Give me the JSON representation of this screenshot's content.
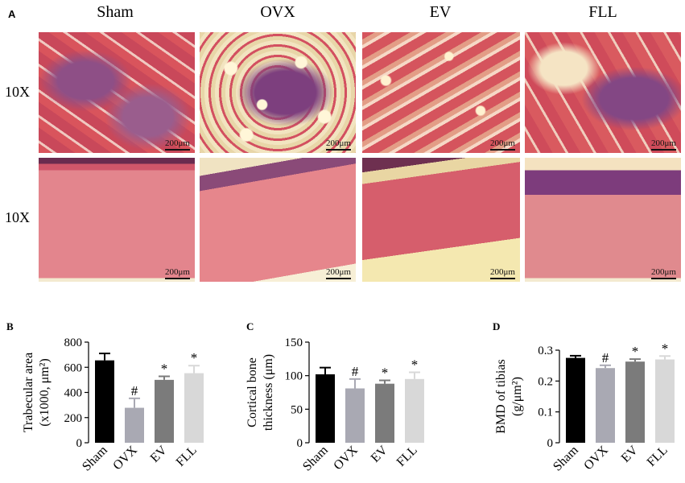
{
  "panel_a": {
    "letter": "A",
    "columns": [
      "Sham",
      "OVX",
      "EV",
      "FLL"
    ],
    "rows": [
      "10X",
      "10X"
    ],
    "scale_bar": "200μm"
  },
  "chart_data": [
    {
      "letter": "B",
      "type": "bar",
      "categories": [
        "Sham",
        "OVX",
        "EV",
        "FLL"
      ],
      "values": [
        655,
        278,
        500,
        553
      ],
      "errors": [
        55,
        75,
        28,
        60
      ],
      "annotations": [
        "",
        "#",
        "*",
        "*"
      ],
      "ylabel_line1": "Trabecular area",
      "ylabel_line2": "(x1000, μm²)",
      "ylim": [
        0,
        800
      ],
      "yticks": [
        0,
        200,
        400,
        600,
        800
      ],
      "colors": [
        "#000000",
        "#a9a9b3",
        "#7b7b7b",
        "#d8d8d8"
      ]
    },
    {
      "letter": "C",
      "type": "bar",
      "categories": [
        "Sham",
        "OVX",
        "EV",
        "FLL"
      ],
      "values": [
        102,
        81,
        88,
        95
      ],
      "errors": [
        10,
        14,
        5,
        10
      ],
      "annotations": [
        "",
        "#",
        "*",
        "*"
      ],
      "ylabel_line1": "Cortical bone",
      "ylabel_line2": "thickness (μm)",
      "ylim": [
        0,
        150
      ],
      "yticks": [
        0,
        50,
        100,
        150
      ],
      "colors": [
        "#000000",
        "#a9a9b3",
        "#7b7b7b",
        "#d8d8d8"
      ]
    },
    {
      "letter": "D",
      "type": "bar",
      "categories": [
        "Sham",
        "OVX",
        "EV",
        "FLL"
      ],
      "values": [
        0.275,
        0.242,
        0.263,
        0.27
      ],
      "errors": [
        0.007,
        0.009,
        0.008,
        0.011
      ],
      "annotations": [
        "",
        "#",
        "*",
        "*"
      ],
      "ylabel_line1": "BMD of tibias",
      "ylabel_line2": "(g/μm²)",
      "ylim": [
        0,
        0.3
      ],
      "yticks": [
        0,
        0.1,
        0.2,
        0.3
      ],
      "yticklabels": [
        "0",
        "0.1",
        "0.2",
        "0.3"
      ],
      "colors": [
        "#000000",
        "#a9a9b3",
        "#7b7b7b",
        "#d8d8d8"
      ]
    }
  ]
}
